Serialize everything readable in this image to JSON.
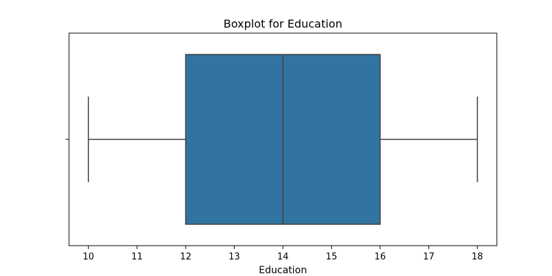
{
  "chart_data": {
    "type": "boxplot",
    "title": "Boxplot for Education",
    "xlabel": "Education",
    "ylabel": "",
    "xlim": [
      9.6,
      18.4
    ],
    "xticks": [
      10,
      11,
      12,
      13,
      14,
      15,
      16,
      17,
      18
    ],
    "orientation": "horizontal",
    "grid": false,
    "box": {
      "variable": "Education",
      "whisker_low": 10,
      "q1": 12,
      "median": 14,
      "q3": 16,
      "whisker_high": 18,
      "outliers": []
    },
    "colors": {
      "box_fill": "#3274a1",
      "line": "#3f3f3f",
      "axis": "#000000"
    }
  }
}
